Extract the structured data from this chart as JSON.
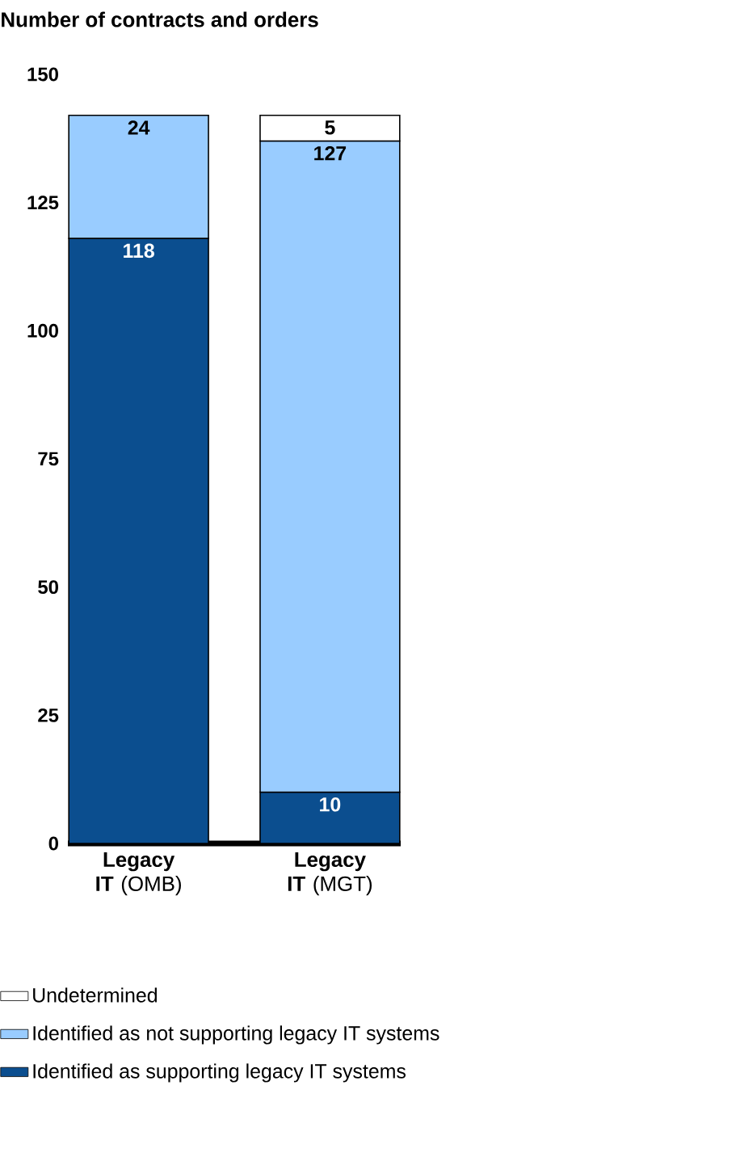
{
  "chart_data": {
    "type": "bar",
    "stacked": true,
    "title": "Number of contracts and orders",
    "categories": [
      "**Legacy IT** (OMB)",
      "**Legacy IT** (MGT)"
    ],
    "series": [
      {
        "name": "Identified as supporting legacy IT systems",
        "color": "#0b4e8f",
        "values": [
          118,
          10
        ]
      },
      {
        "name": "Identified as not supporting legacy IT systems",
        "color": "#99ccff",
        "values": [
          24,
          127
        ]
      },
      {
        "name": "Undetermined",
        "color": "#ffffff",
        "values": [
          null,
          5
        ]
      }
    ],
    "ylim": [
      0,
      150
    ],
    "yticks": [
      0,
      25,
      50,
      75,
      100,
      125,
      150
    ],
    "data_labels": true,
    "legend": "bottom"
  }
}
